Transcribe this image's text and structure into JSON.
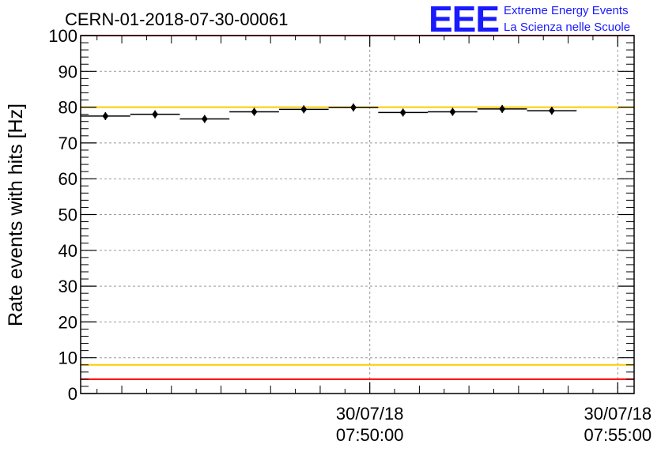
{
  "chart_data": {
    "type": "scatter",
    "title": "CERN-01-2018-07-30-00061",
    "ylabel": "Rate events with hits [Hz]",
    "xlabel": "",
    "ylim": [
      0,
      100
    ],
    "yticks": [
      0,
      10,
      20,
      30,
      40,
      50,
      60,
      70,
      80,
      90,
      100
    ],
    "xlim_minutes": [
      44.17,
      55.33
    ],
    "xticks": [
      {
        "minute": 50,
        "date": "30/07/18",
        "time": "07:50:00"
      },
      {
        "minute": 55,
        "date": "30/07/18",
        "time": "07:55:00"
      }
    ],
    "grid": true,
    "series": [
      {
        "points": [
          {
            "minute": 44.67,
            "value": 77.5
          },
          {
            "minute": 45.67,
            "value": 78.0
          },
          {
            "minute": 46.67,
            "value": 76.7
          },
          {
            "minute": 47.67,
            "value": 78.7
          },
          {
            "minute": 48.67,
            "value": 79.4
          },
          {
            "minute": 49.67,
            "value": 79.9
          },
          {
            "minute": 50.67,
            "value": 78.5
          },
          {
            "minute": 51.67,
            "value": 78.7
          },
          {
            "minute": 52.67,
            "value": 79.5
          },
          {
            "minute": 53.67,
            "value": 79.0
          }
        ],
        "bin_width_minutes": 1.0,
        "color": "#000000"
      }
    ],
    "reference_lines": [
      {
        "value": 80,
        "color": "#ffcc00"
      },
      {
        "value": 8,
        "color": "#ffcc00"
      },
      {
        "value": 100,
        "color": "#ff0000"
      },
      {
        "value": 4,
        "color": "#ff0000"
      }
    ]
  },
  "logo": {
    "mark": "EEE",
    "line1": "Extreme Energy Events",
    "line2": "La Scienza nelle Scuole",
    "color": "#1a1aff"
  }
}
